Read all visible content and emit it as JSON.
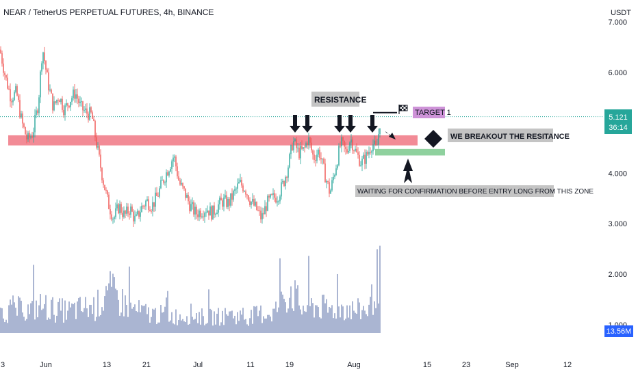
{
  "header": {
    "title": "NEAR / TetherUS PERPETUAL FUTURES, 4h, BINANCE",
    "currency": "USDT"
  },
  "colors": {
    "up": "#26a69a",
    "down": "#ef5350",
    "volume": "#5b6ea8",
    "resistance_band": "#f28b96",
    "entry_zone": "#8fd19e",
    "price_tag": "#26a69a",
    "volume_tag": "#2962ff",
    "target_badge": "#ce93d8",
    "note_bg": "#c4c4c4"
  },
  "chart_data": {
    "type": "candlestick",
    "symbol": "NEAR / TetherUS PERPETUAL FUTURES",
    "timeframe": "4h",
    "exchange": "BINANCE",
    "y_ticks": [
      "7.000",
      "6.000",
      "5.000",
      "4.000",
      "3.000",
      "2.000",
      "1.000"
    ],
    "x_ticks": [
      "3",
      "Jun",
      "13",
      "21",
      "Jul",
      "11",
      "19",
      "Aug",
      "15",
      "23",
      "Sep",
      "12"
    ],
    "last_price": "5.121",
    "countdown": "36:14",
    "volume_last": "13.56M",
    "price_path": [
      [
        0,
        6.45
      ],
      [
        8,
        5.9
      ],
      [
        16,
        5.5
      ],
      [
        24,
        5.6
      ],
      [
        32,
        5.0
      ],
      [
        40,
        4.65
      ],
      [
        48,
        4.8
      ],
      [
        56,
        5.4
      ],
      [
        62,
        6.5
      ],
      [
        70,
        5.8
      ],
      [
        78,
        5.3
      ],
      [
        86,
        5.55
      ],
      [
        94,
        5.25
      ],
      [
        102,
        5.45
      ],
      [
        110,
        5.6
      ],
      [
        118,
        5.3
      ],
      [
        126,
        5.2
      ],
      [
        134,
        5.15
      ],
      [
        142,
        4.5
      ],
      [
        150,
        3.9
      ],
      [
        158,
        3.4
      ],
      [
        166,
        3.1
      ],
      [
        174,
        3.35
      ],
      [
        182,
        3.15
      ],
      [
        190,
        3.3
      ],
      [
        198,
        3.05
      ],
      [
        206,
        3.3
      ],
      [
        214,
        3.45
      ],
      [
        222,
        3.35
      ],
      [
        230,
        3.55
      ],
      [
        238,
        3.85
      ],
      [
        246,
        4.1
      ],
      [
        254,
        4.35
      ],
      [
        262,
        3.8
      ],
      [
        270,
        3.6
      ],
      [
        278,
        3.35
      ],
      [
        286,
        3.2
      ],
      [
        294,
        3.25
      ],
      [
        302,
        3.3
      ],
      [
        310,
        3.2
      ],
      [
        318,
        3.35
      ],
      [
        326,
        3.45
      ],
      [
        334,
        3.4
      ],
      [
        342,
        3.6
      ],
      [
        350,
        3.8
      ],
      [
        358,
        3.7
      ],
      [
        366,
        3.45
      ],
      [
        374,
        3.3
      ],
      [
        382,
        3.1
      ],
      [
        390,
        3.4
      ],
      [
        398,
        3.5
      ],
      [
        406,
        3.55
      ],
      [
        414,
        3.8
      ],
      [
        422,
        4.2
      ],
      [
        428,
        4.65
      ],
      [
        436,
        4.4
      ],
      [
        444,
        4.45
      ],
      [
        450,
        4.7
      ],
      [
        458,
        4.3
      ],
      [
        466,
        4.45
      ],
      [
        474,
        4.0
      ],
      [
        482,
        3.6
      ],
      [
        490,
        4.1
      ],
      [
        498,
        4.6
      ],
      [
        506,
        4.4
      ],
      [
        512,
        4.7
      ],
      [
        520,
        4.4
      ],
      [
        528,
        4.2
      ],
      [
        536,
        4.35
      ],
      [
        544,
        4.6
      ],
      [
        550,
        4.45
      ],
      [
        556,
        5.12
      ]
    ],
    "volume_path": [
      [
        0,
        0.7
      ],
      [
        20,
        0.9
      ],
      [
        40,
        0.8
      ],
      [
        60,
        1.0
      ],
      [
        80,
        0.85
      ],
      [
        100,
        0.8
      ],
      [
        120,
        0.9
      ],
      [
        140,
        0.95
      ],
      [
        160,
        1.5
      ],
      [
        180,
        1.1
      ],
      [
        200,
        0.8
      ],
      [
        220,
        0.7
      ],
      [
        240,
        0.65
      ],
      [
        260,
        0.6
      ],
      [
        280,
        0.7
      ],
      [
        300,
        0.55
      ],
      [
        320,
        0.6
      ],
      [
        340,
        0.65
      ],
      [
        360,
        0.55
      ],
      [
        380,
        0.7
      ],
      [
        400,
        0.75
      ],
      [
        425,
        1.6
      ],
      [
        440,
        0.9
      ],
      [
        460,
        1.0
      ],
      [
        480,
        0.85
      ],
      [
        500,
        0.95
      ],
      [
        520,
        0.8
      ],
      [
        540,
        0.9
      ],
      [
        555,
        2.4
      ]
    ],
    "resistance_band": [
      4.55,
      4.75
    ],
    "entry_zone": [
      4.35,
      4.48
    ],
    "target_level": 5.2
  },
  "annotations": {
    "resistance": "RESISTANCE",
    "target": "TARGET 1",
    "breakout": "WE BREAKOUT THE RESITANCE",
    "waiting": "WAITING FOR CONFIRMATION BEFORE ENTRY LONG FROM THIS ZONE"
  }
}
